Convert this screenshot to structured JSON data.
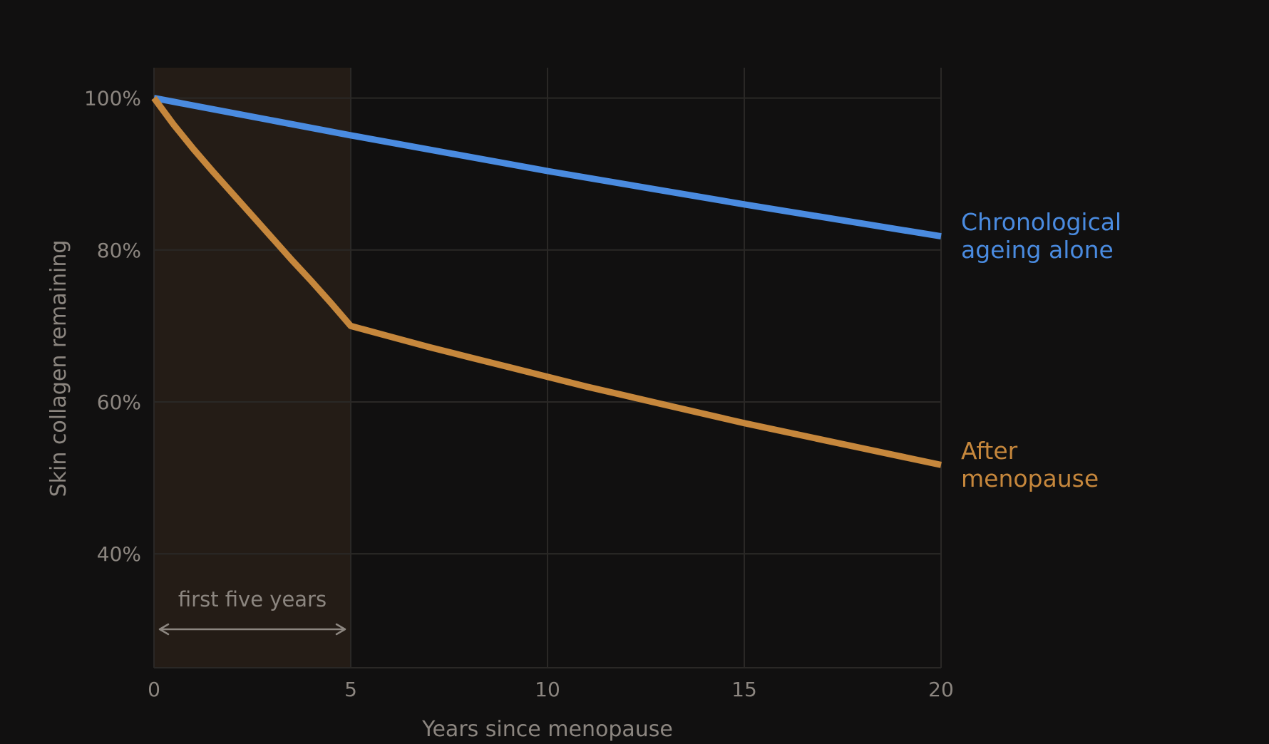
{
  "chart_data": {
    "type": "line",
    "xlabel": "Years since menopause",
    "ylabel": "Skin collagen remaining",
    "xlim": [
      0,
      20
    ],
    "ylim": [
      25,
      104
    ],
    "x_ticks": [
      0,
      5,
      10,
      15,
      20
    ],
    "x_tick_labels": [
      "0",
      "5",
      "10",
      "15",
      "20"
    ],
    "y_ticks": [
      40,
      60,
      80,
      100
    ],
    "y_tick_labels": [
      "40%",
      "60%",
      "80%",
      "100%"
    ],
    "grid": true,
    "colors": {
      "background": "#111010",
      "grid": "#2a2826",
      "band": "#241c16",
      "axis_text": "#8c8680",
      "chronological": "#4a8be0",
      "menopause": "#c6873c"
    },
    "highlight": {
      "from": 0,
      "to": 5,
      "label": "first five years"
    },
    "series": [
      {
        "name": "Chronological ageing alone",
        "label_lines": [
          "Chronological",
          "ageing alone"
        ],
        "color": "#4a8be0",
        "x": [
          0,
          5,
          10,
          15,
          20
        ],
        "y": [
          100,
          95.1,
          90.4,
          86.0,
          81.8
        ]
      },
      {
        "name": "After menopause",
        "label_lines": [
          "After",
          "menopause"
        ],
        "color": "#c6873c",
        "x": [
          0,
          0.5,
          1,
          1.5,
          2,
          2.5,
          3,
          3.5,
          4,
          4.5,
          5,
          6,
          7,
          8,
          9,
          10,
          11,
          12,
          13,
          14,
          15,
          16,
          17,
          18,
          19,
          20
        ],
        "y": [
          100,
          96.5,
          93.3,
          90.3,
          87.4,
          84.5,
          81.6,
          78.7,
          75.9,
          73.0,
          70.0,
          68.6,
          67.2,
          65.9,
          64.6,
          63.3,
          62.0,
          60.8,
          59.6,
          58.4,
          57.2,
          56.1,
          55.0,
          53.9,
          52.8,
          51.7
        ]
      }
    ]
  }
}
